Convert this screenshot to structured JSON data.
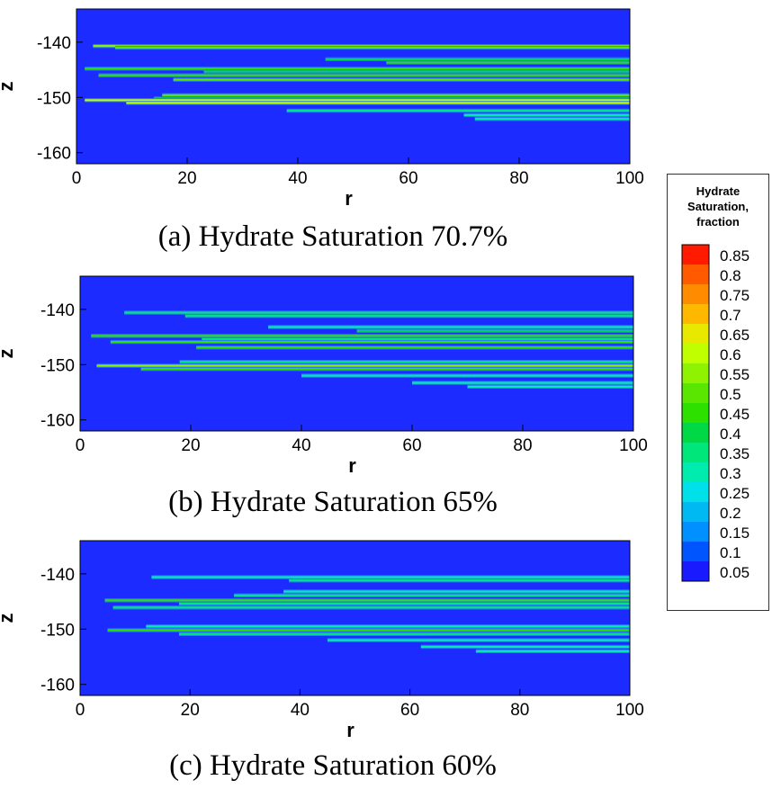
{
  "legend": {
    "title_lines": [
      "Hydrate",
      "Saturation,",
      "fraction"
    ],
    "levels": [
      "0.85",
      "0.8",
      "0.75",
      "0.7",
      "0.65",
      "0.6",
      "0.55",
      "0.5",
      "0.45",
      "0.4",
      "0.35",
      "0.3",
      "0.25",
      "0.2",
      "0.15",
      "0.1",
      "0.05"
    ],
    "colors": [
      "#ff1a00",
      "#ff5a00",
      "#ff8c00",
      "#ffb800",
      "#e8e800",
      "#c0ff00",
      "#8ef200",
      "#5ae600",
      "#2ee000",
      "#00d845",
      "#00e67a",
      "#00ecae",
      "#00e0e8",
      "#00b8f2",
      "#0090ff",
      "#0055ff",
      "#1a1aff"
    ]
  },
  "background_color": "#1c2bff",
  "chart_data": [
    {
      "type": "heatmap",
      "caption": "(a) Hydrate Saturation 70.7%",
      "xlabel": "r",
      "ylabel": "z",
      "xlim": [
        0,
        100
      ],
      "ylim": [
        -162,
        -134
      ],
      "xticks": [
        0,
        20,
        40,
        60,
        80,
        100
      ],
      "yticks": [
        -140,
        -150,
        -160
      ],
      "layers": [
        {
          "z": -140.7,
          "r_start": 3,
          "value": 0.55
        },
        {
          "z": -141.0,
          "r_start": 7,
          "value": 0.5
        },
        {
          "z": -143.1,
          "r_start": 45,
          "value": 0.4
        },
        {
          "z": -143.7,
          "r_start": 56,
          "value": 0.45
        },
        {
          "z": -144.8,
          "r_start": 1.5,
          "value": 0.45
        },
        {
          "z": -145.3,
          "r_start": 23,
          "value": 0.4
        },
        {
          "z": -146.0,
          "r_start": 4,
          "value": 0.45
        },
        {
          "z": -146.8,
          "r_start": 17.5,
          "value": 0.5
        },
        {
          "z": -149.6,
          "r_start": 15.5,
          "value": 0.5
        },
        {
          "z": -150.2,
          "r_start": 14,
          "value": 0.4
        },
        {
          "z": -150.5,
          "r_start": 1.5,
          "value": 0.6
        },
        {
          "z": -151.0,
          "r_start": 9,
          "value": 0.6
        },
        {
          "z": -152.4,
          "r_start": 38,
          "value": 0.35
        },
        {
          "z": -153.2,
          "r_start": 70,
          "value": 0.3
        },
        {
          "z": -153.9,
          "r_start": 72,
          "value": 0.3
        }
      ]
    },
    {
      "type": "heatmap",
      "caption": "(b) Hydrate Saturation 65%",
      "xlabel": "r",
      "ylabel": "z",
      "xlim": [
        0,
        100
      ],
      "ylim": [
        -162,
        -134
      ],
      "xticks": [
        0,
        20,
        40,
        60,
        80,
        100
      ],
      "yticks": [
        -140,
        -150,
        -160
      ],
      "layers": [
        {
          "z": -140.6,
          "r_start": 8,
          "value": 0.35
        },
        {
          "z": -141.2,
          "r_start": 19,
          "value": 0.35
        },
        {
          "z": -143.2,
          "r_start": 34,
          "value": 0.3
        },
        {
          "z": -143.9,
          "r_start": 50,
          "value": 0.4
        },
        {
          "z": -144.8,
          "r_start": 2,
          "value": 0.45
        },
        {
          "z": -145.4,
          "r_start": 22,
          "value": 0.35
        },
        {
          "z": -145.9,
          "r_start": 5.5,
          "value": 0.45
        },
        {
          "z": -146.9,
          "r_start": 21,
          "value": 0.45
        },
        {
          "z": -149.5,
          "r_start": 18,
          "value": 0.35
        },
        {
          "z": -150.2,
          "r_start": 3,
          "value": 0.55
        },
        {
          "z": -150.8,
          "r_start": 11,
          "value": 0.45
        },
        {
          "z": -152.0,
          "r_start": 40,
          "value": 0.3
        },
        {
          "z": -153.3,
          "r_start": 60,
          "value": 0.3
        },
        {
          "z": -154.0,
          "r_start": 70,
          "value": 0.3
        }
      ]
    },
    {
      "type": "heatmap",
      "caption": "(c) Hydrate Saturation 60%",
      "xlabel": "r",
      "ylabel": "z",
      "xlim": [
        0,
        100
      ],
      "ylim": [
        -162,
        -134
      ],
      "xticks": [
        0,
        20,
        40,
        60,
        80,
        100
      ],
      "yticks": [
        -140,
        -150,
        -160
      ],
      "layers": [
        {
          "z": -140.6,
          "r_start": 13,
          "value": 0.3
        },
        {
          "z": -141.2,
          "r_start": 38,
          "value": 0.35
        },
        {
          "z": -143.2,
          "r_start": 37,
          "value": 0.3
        },
        {
          "z": -143.9,
          "r_start": 28,
          "value": 0.35
        },
        {
          "z": -144.8,
          "r_start": 4.5,
          "value": 0.45
        },
        {
          "z": -145.4,
          "r_start": 18,
          "value": 0.35
        },
        {
          "z": -146.1,
          "r_start": 6,
          "value": 0.35
        },
        {
          "z": -149.5,
          "r_start": 12,
          "value": 0.3
        },
        {
          "z": -150.2,
          "r_start": 5,
          "value": 0.45
        },
        {
          "z": -150.9,
          "r_start": 18,
          "value": 0.35
        },
        {
          "z": -152.0,
          "r_start": 45,
          "value": 0.3
        },
        {
          "z": -153.2,
          "r_start": 62,
          "value": 0.3
        },
        {
          "z": -154.0,
          "r_start": 72,
          "value": 0.3
        }
      ]
    }
  ]
}
